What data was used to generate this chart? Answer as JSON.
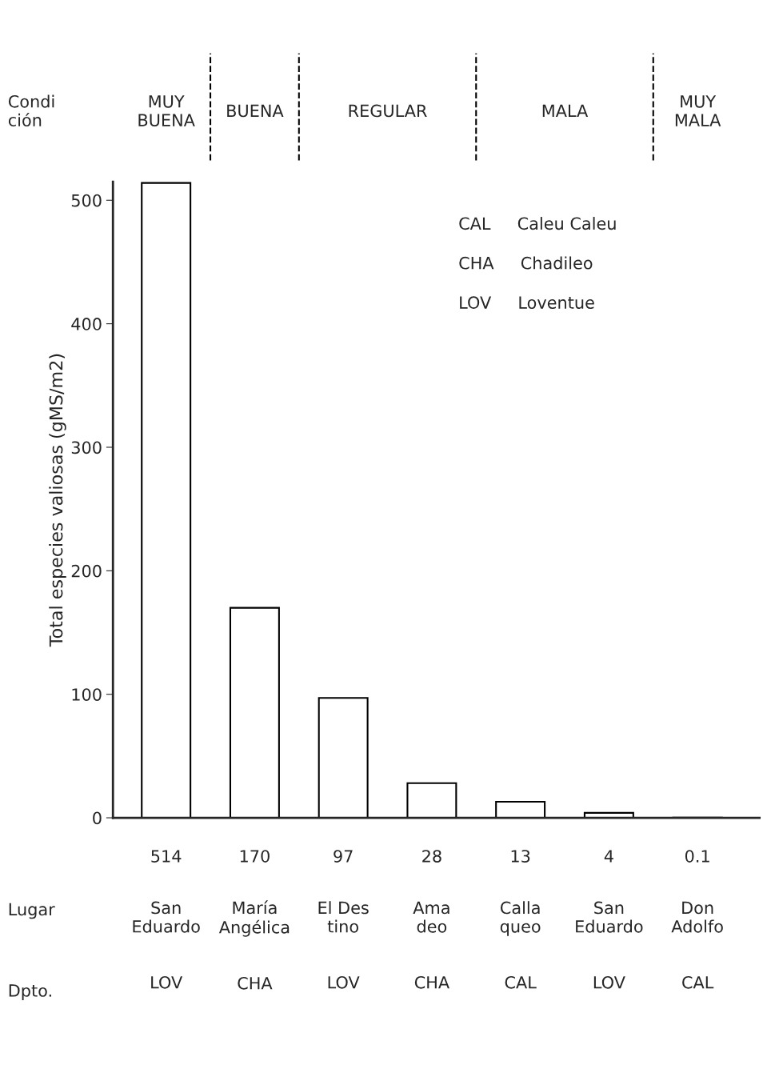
{
  "chart_data": {
    "type": "bar",
    "ylabel": "Total especies valiosas (gMS/m2)",
    "categories": [
      "San\nEduardo\n\n\nLOV",
      "María\nAngélica\n\n\nCHA",
      "El Des\ntino\n\n\nLOV",
      "Ama\ndeo\n\n\nCHA",
      "Calla\nqueo\n\n\nCAL",
      "San\nEduardo\n\n\nLOV",
      "Don\nAdolfo\n\n\nCAL"
    ],
    "values": [
      514,
      170,
      97,
      28,
      13,
      4,
      0.1
    ],
    "color": "#ffffff",
    "data_labels": true,
    "ylim": [
      0,
      515
    ],
    "yticks": [
      0,
      100,
      200,
      300,
      400,
      500
    ],
    "grid": false,
    "legend": false,
    "annotations": [
      "Condi\nción",
      "MUY\nBUENA",
      "BUENA",
      "REGULAR",
      "MALA",
      "MUY\nMALA",
      "Lugar",
      "Dpto.",
      "CAL     Caleu Caleu",
      "CHA     Chadileo",
      "LOV     Loventue"
    ]
  }
}
